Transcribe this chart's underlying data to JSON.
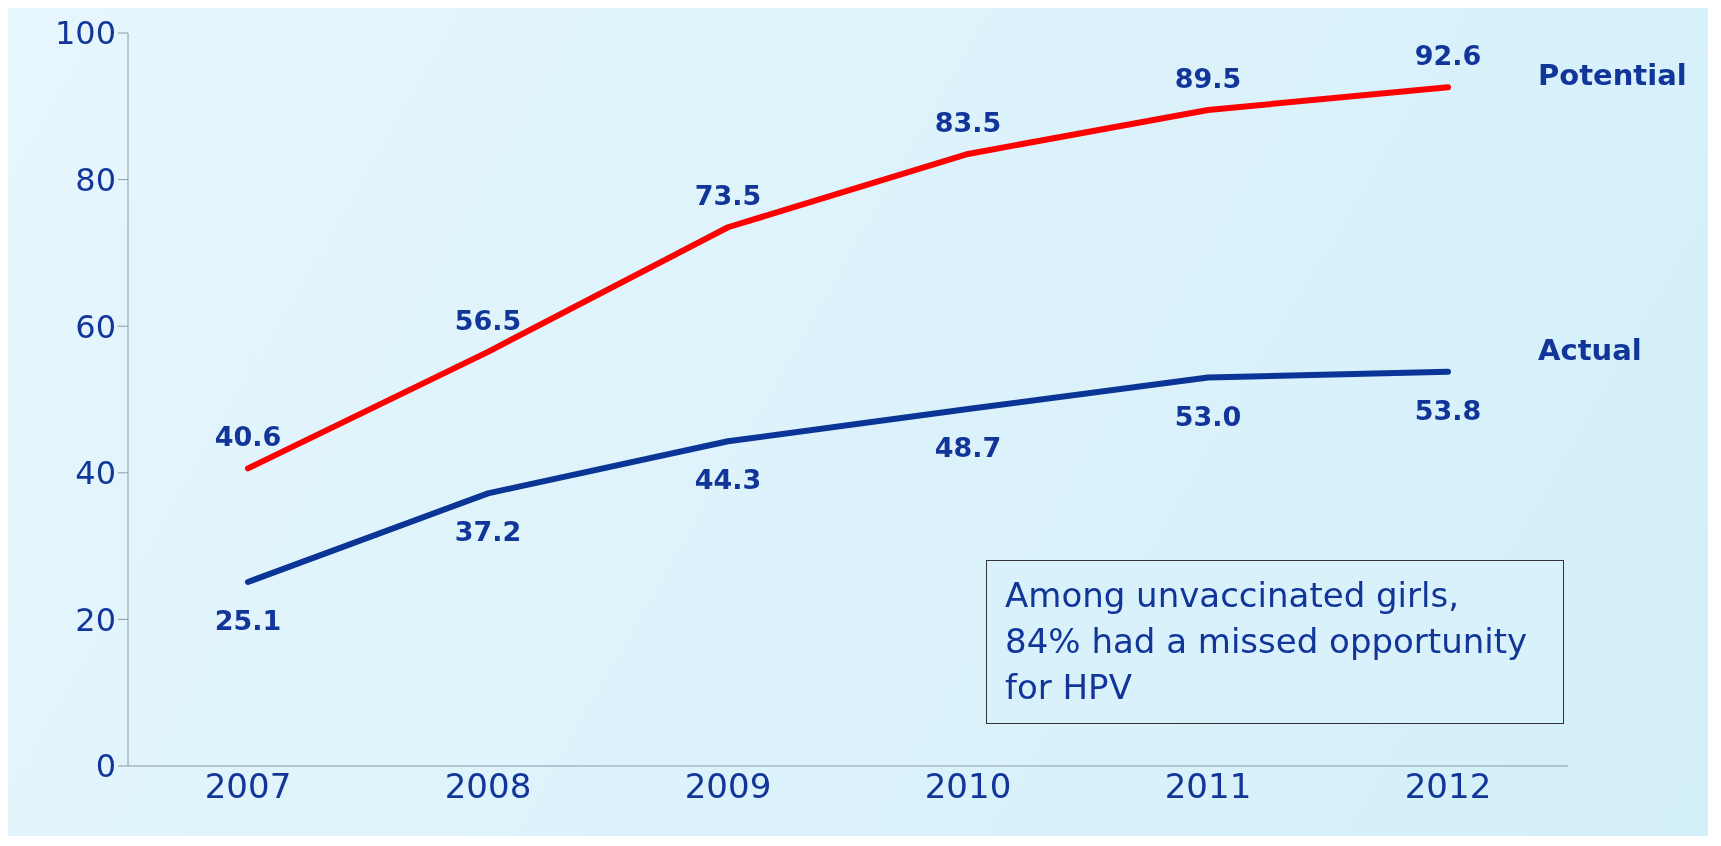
{
  "chart_data": {
    "type": "line",
    "categories": [
      "2007",
      "2008",
      "2009",
      "2010",
      "2011",
      "2012"
    ],
    "series": [
      {
        "name": "Potential",
        "color": "#ff0000",
        "values": [
          40.6,
          56.5,
          73.5,
          83.5,
          89.5,
          92.6
        ],
        "value_labels": [
          "40.6",
          "56.5",
          "73.5",
          "83.5",
          "89.5",
          "92.6"
        ]
      },
      {
        "name": "Actual",
        "color": "#0a3597",
        "values": [
          25.1,
          37.2,
          44.3,
          48.7,
          53.0,
          53.8
        ],
        "value_labels": [
          "25.1",
          "37.2",
          "44.3",
          "48.7",
          "53.0",
          "53.8"
        ]
      }
    ],
    "ylim": [
      0,
      100
    ],
    "yticks": [
      0,
      20,
      40,
      60,
      80,
      100
    ],
    "grid": false,
    "legend": false,
    "marker": "none",
    "line_style": "solid",
    "annotations": [
      "Among unvaccinated girls, 84% had a missed opportunity for HPV"
    ]
  }
}
